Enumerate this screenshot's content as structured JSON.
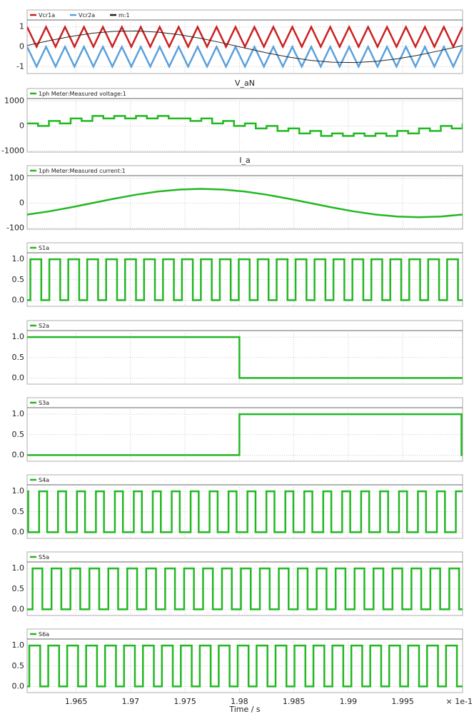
{
  "chart_data": [
    {
      "type": "line",
      "xlim": [
        1.9605,
        2.0005
      ],
      "ylim": [
        -1.35,
        1.35
      ],
      "xticks": [
        1.965,
        1.97,
        1.975,
        1.98,
        1.985,
        1.99,
        1.995
      ],
      "yticks": [
        -1,
        0,
        1
      ],
      "grid": true,
      "series": [
        {
          "name": "Vcr1a",
          "color": "#cc1f1f",
          "x": [
            1.9605,
            1.96137,
            1.96224,
            1.96311,
            1.96398,
            1.96485,
            1.96572,
            1.96659,
            1.96746,
            1.96833,
            1.9692,
            1.97007,
            1.97094,
            1.97181,
            1.97268,
            1.97355,
            1.97442,
            1.97529,
            1.97616,
            1.97703,
            1.9779,
            1.97877,
            1.97964,
            1.98051,
            1.98138,
            1.98225,
            1.98312,
            1.98399,
            1.98486,
            1.98573,
            1.9866,
            1.98747,
            1.98834,
            1.98921,
            1.99008,
            1.99095,
            1.99182,
            1.99269,
            1.99356,
            1.99443,
            1.9953,
            1.99617,
            1.99704,
            1.99791,
            1.99878,
            1.99965,
            2.0005
          ],
          "values": [
            1,
            0,
            1,
            0,
            1,
            0,
            1,
            0,
            1,
            0,
            1,
            0,
            1,
            0,
            1,
            0,
            1,
            0,
            1,
            0,
            1,
            0,
            1,
            0,
            1,
            0,
            1,
            0,
            1,
            0,
            1,
            0,
            1,
            0,
            1,
            0,
            1,
            0,
            1,
            0,
            1,
            0,
            1,
            0,
            1,
            0,
            1
          ]
        },
        {
          "name": "Vcr2a",
          "color": "#5aa0dc",
          "x": [
            1.9605,
            1.96137,
            1.96224,
            1.96311,
            1.96398,
            1.96485,
            1.96572,
            1.96659,
            1.96746,
            1.96833,
            1.9692,
            1.97007,
            1.97094,
            1.97181,
            1.97268,
            1.97355,
            1.97442,
            1.97529,
            1.97616,
            1.97703,
            1.9779,
            1.97877,
            1.97964,
            1.98051,
            1.98138,
            1.98225,
            1.98312,
            1.98399,
            1.98486,
            1.98573,
            1.9866,
            1.98747,
            1.98834,
            1.98921,
            1.99008,
            1.99095,
            1.99182,
            1.99269,
            1.99356,
            1.99443,
            1.9953,
            1.99617,
            1.99704,
            1.99791,
            1.99878,
            1.99965,
            2.0005
          ],
          "values": [
            0,
            -1,
            0,
            -1,
            0,
            -1,
            0,
            -1,
            0,
            -1,
            0,
            -1,
            0,
            -1,
            0,
            -1,
            0,
            -1,
            0,
            -1,
            0,
            -1,
            0,
            -1,
            0,
            -1,
            0,
            -1,
            0,
            -1,
            0,
            -1,
            0,
            -1,
            0,
            -1,
            0,
            -1,
            0,
            -1,
            0,
            -1,
            0,
            -1,
            0,
            -1,
            0
          ]
        },
        {
          "name": "m:1",
          "color": "#222222",
          "x": [
            1.9605,
            1.9625,
            1.9645,
            1.9665,
            1.9685,
            1.9705,
            1.9725,
            1.9745,
            1.9765,
            1.9785,
            1.9805,
            1.9825,
            1.9845,
            1.9865,
            1.9885,
            1.9905,
            1.9925,
            1.9945,
            1.9965,
            1.9985,
            2.0005
          ],
          "values": [
            0.063,
            0.306,
            0.519,
            0.682,
            0.778,
            0.798,
            0.739,
            0.608,
            0.417,
            0.187,
            -0.063,
            -0.306,
            -0.519,
            -0.682,
            -0.778,
            -0.798,
            -0.739,
            -0.608,
            -0.417,
            -0.187,
            0.063
          ]
        }
      ]
    },
    {
      "type": "step",
      "title": "V_aN",
      "xlim": [
        1.9605,
        2.0005
      ],
      "ylim": [
        -1050,
        1100
      ],
      "xticks": [
        1.965,
        1.97,
        1.975,
        1.98,
        1.985,
        1.99,
        1.995
      ],
      "yticks": [
        -1000,
        0,
        1000
      ],
      "grid": true,
      "series": [
        {
          "name": "1ph Meter:Measured voltage:1",
          "color": "#22b822",
          "x": [
            1.9605,
            1.9615,
            1.9625,
            1.9635,
            1.9645,
            1.9655,
            1.9665,
            1.9675,
            1.9685,
            1.9695,
            1.9705,
            1.9715,
            1.9725,
            1.9735,
            1.9745,
            1.9755,
            1.9765,
            1.9775,
            1.9785,
            1.9795,
            1.9805,
            1.9815,
            1.9825,
            1.9835,
            1.9845,
            1.9855,
            1.9865,
            1.9875,
            1.9885,
            1.9895,
            1.9905,
            1.9915,
            1.9925,
            1.9935,
            1.9945,
            1.9955,
            1.9965,
            1.9975,
            1.9985,
            1.9995,
            2.0005
          ],
          "values": [
            100,
            0,
            200,
            100,
            300,
            200,
            400,
            300,
            400,
            300,
            400,
            300,
            400,
            300,
            300,
            200,
            300,
            100,
            200,
            0,
            100,
            -100,
            0,
            -200,
            -100,
            -300,
            -200,
            -400,
            -300,
            -400,
            -300,
            -400,
            -300,
            -400,
            -200,
            -300,
            -100,
            -200,
            0,
            -100,
            100
          ]
        }
      ]
    },
    {
      "type": "line",
      "title": "I_a",
      "xlim": [
        1.9605,
        2.0005
      ],
      "ylim": [
        -105,
        110
      ],
      "xticks": [
        1.965,
        1.97,
        1.975,
        1.98,
        1.985,
        1.99,
        1.995
      ],
      "yticks": [
        -100,
        0,
        100
      ],
      "grid": true,
      "series": [
        {
          "name": "1ph Meter:Measured current:1",
          "color": "#22b822",
          "x": [
            1.9605,
            1.9625,
            1.9645,
            1.9665,
            1.9685,
            1.9705,
            1.9725,
            1.9745,
            1.9765,
            1.9785,
            1.9805,
            1.9825,
            1.9845,
            1.9865,
            1.9885,
            1.9905,
            1.9925,
            1.9945,
            1.9965,
            1.9985,
            2.0005
          ],
          "values": [
            -46.1,
            -33.5,
            -17.6,
            0,
            17.6,
            33.5,
            46.1,
            54.2,
            57,
            54.2,
            46.1,
            33.5,
            17.6,
            0,
            -17.6,
            -33.5,
            -46.1,
            -54.2,
            -57,
            -54.2,
            -46.1
          ]
        }
      ]
    },
    {
      "type": "step",
      "xlim": [
        1.9605,
        2.0005
      ],
      "ylim": [
        -0.15,
        1.16
      ],
      "xticks": [
        1.965,
        1.97,
        1.975,
        1.98,
        1.985,
        1.99,
        1.995
      ],
      "yticks": [
        {
          "value": 0,
          "label": "0.0"
        },
        {
          "value": 0.5,
          "label": "0.5"
        },
        {
          "value": 1,
          "label": "1.0"
        }
      ],
      "grid": true,
      "series": [
        {
          "name": "S1a",
          "color": "#22b822",
          "x": [
            1.9605,
            1.9608,
            1.9618,
            1.96254,
            1.96354,
            1.96428,
            1.96528,
            1.96602,
            1.96702,
            1.96776,
            1.96876,
            1.9695,
            1.9705,
            1.97124,
            1.97224,
            1.97298,
            1.97398,
            1.97472,
            1.97572,
            1.97646,
            1.97746,
            1.9782,
            1.9792,
            1.97994,
            1.98094,
            1.98168,
            1.98268,
            1.98342,
            1.98442,
            1.98516,
            1.98616,
            1.9869,
            1.9879,
            1.98864,
            1.98964,
            1.99038,
            1.99138,
            1.99212,
            1.99312,
            1.99386,
            1.99486,
            1.9956,
            1.9966,
            1.99734,
            1.99834,
            1.99908,
            2.00008
          ],
          "values": [
            0,
            1,
            0,
            1,
            0,
            1,
            0,
            1,
            0,
            1,
            0,
            1,
            0,
            1,
            0,
            1,
            0,
            1,
            0,
            1,
            0,
            1,
            0,
            1,
            0,
            1,
            0,
            1,
            0,
            1,
            0,
            1,
            0,
            1,
            0,
            1,
            0,
            1,
            0,
            1,
            0,
            1,
            0,
            1,
            0,
            1,
            0
          ]
        }
      ]
    },
    {
      "type": "step",
      "xlim": [
        1.9605,
        2.0005
      ],
      "ylim": [
        -0.15,
        1.16
      ],
      "xticks": [
        1.965,
        1.97,
        1.975,
        1.98,
        1.985,
        1.99,
        1.995
      ],
      "yticks": [
        {
          "value": 0,
          "label": "0.0"
        },
        {
          "value": 0.5,
          "label": "0.5"
        },
        {
          "value": 1,
          "label": "1.0"
        }
      ],
      "grid": true,
      "series": [
        {
          "name": "S2a",
          "color": "#22b822",
          "x": [
            1.9605,
            1.98
          ],
          "values": [
            1,
            0
          ]
        }
      ]
    },
    {
      "type": "step",
      "xlim": [
        1.9605,
        2.0005
      ],
      "ylim": [
        -0.15,
        1.16
      ],
      "xticks": [
        1.965,
        1.97,
        1.975,
        1.98,
        1.985,
        1.99,
        1.995
      ],
      "yticks": [
        {
          "value": 0,
          "label": "0.0"
        },
        {
          "value": 0.5,
          "label": "0.5"
        },
        {
          "value": 1,
          "label": "1.0"
        }
      ],
      "grid": true,
      "series": [
        {
          "name": "S3a",
          "color": "#22b822",
          "x": [
            1.9605,
            1.98,
            2.0004
          ],
          "values": [
            0,
            1,
            0
          ]
        }
      ]
    },
    {
      "type": "step",
      "xlim": [
        1.9605,
        2.0005
      ],
      "ylim": [
        -0.15,
        1.16
      ],
      "xticks": [
        1.965,
        1.97,
        1.975,
        1.98,
        1.985,
        1.99,
        1.995
      ],
      "yticks": [
        {
          "value": 0,
          "label": "0.0"
        },
        {
          "value": 0.5,
          "label": "0.5"
        },
        {
          "value": 1,
          "label": "1.0"
        }
      ],
      "grid": true,
      "series": [
        {
          "name": "S4a",
          "color": "#22b822",
          "x": [
            1.9605,
            1.9606,
            1.9616,
            1.96234,
            1.96334,
            1.96408,
            1.96508,
            1.96582,
            1.96682,
            1.96756,
            1.96856,
            1.9693,
            1.9703,
            1.97104,
            1.97204,
            1.97278,
            1.97378,
            1.97452,
            1.97552,
            1.97626,
            1.97726,
            1.978,
            1.979,
            1.97974,
            1.98074,
            1.98148,
            1.98248,
            1.98322,
            1.98422,
            1.98496,
            1.98596,
            1.9867,
            1.9877,
            1.98844,
            1.98944,
            1.99018,
            1.99118,
            1.99192,
            1.99292,
            1.99366,
            1.99466,
            1.9954,
            1.9964,
            1.99714,
            1.99814,
            1.99888,
            1.99988
          ],
          "values": [
            1,
            0,
            1,
            0,
            1,
            0,
            1,
            0,
            1,
            0,
            1,
            0,
            1,
            0,
            1,
            0,
            1,
            0,
            1,
            0,
            1,
            0,
            1,
            0,
            1,
            0,
            1,
            0,
            1,
            0,
            1,
            0,
            1,
            0,
            1,
            0,
            1,
            0,
            1,
            0,
            1,
            0,
            1,
            0,
            1,
            0,
            1
          ]
        }
      ]
    },
    {
      "type": "step",
      "xlim": [
        1.9605,
        2.0005
      ],
      "ylim": [
        -0.15,
        1.16
      ],
      "xticks": [
        1.965,
        1.97,
        1.975,
        1.98,
        1.985,
        1.99,
        1.995
      ],
      "yticks": [
        {
          "value": 0,
          "label": "0.0"
        },
        {
          "value": 0.5,
          "label": "0.5"
        },
        {
          "value": 1,
          "label": "1.0"
        }
      ],
      "grid": true,
      "series": [
        {
          "name": "S5a",
          "color": "#22b822",
          "x": [
            1.9605,
            1.961,
            1.9619,
            1.96274,
            1.96364,
            1.96448,
            1.96538,
            1.96622,
            1.96712,
            1.96796,
            1.96886,
            1.9697,
            1.9706,
            1.97144,
            1.97234,
            1.97318,
            1.97408,
            1.97492,
            1.97582,
            1.97666,
            1.97756,
            1.9784,
            1.9793,
            1.98014,
            1.98104,
            1.98188,
            1.98278,
            1.98362,
            1.98452,
            1.98536,
            1.98626,
            1.9871,
            1.988,
            1.98884,
            1.98974,
            1.99058,
            1.99148,
            1.99232,
            1.99322,
            1.99406,
            1.99496,
            1.9958,
            1.9967,
            1.99754,
            1.99844,
            1.99928,
            2.00018
          ],
          "values": [
            0,
            1,
            0,
            1,
            0,
            1,
            0,
            1,
            0,
            1,
            0,
            1,
            0,
            1,
            0,
            1,
            0,
            1,
            0,
            1,
            0,
            1,
            0,
            1,
            0,
            1,
            0,
            1,
            0,
            1,
            0,
            1,
            0,
            1,
            0,
            1,
            0,
            1,
            0,
            1,
            0,
            1,
            0,
            1,
            0,
            1,
            0
          ]
        }
      ]
    },
    {
      "type": "step",
      "xlim": [
        1.9605,
        2.0005
      ],
      "ylim": [
        -0.15,
        1.16
      ],
      "xticks": [
        1.965,
        1.97,
        1.975,
        1.98,
        1.985,
        1.99,
        1.995
      ],
      "yticks": [
        {
          "value": 0,
          "label": "0.0"
        },
        {
          "value": 0.5,
          "label": "0.5"
        },
        {
          "value": 1,
          "label": "1.0"
        }
      ],
      "grid": true,
      "xtick_labels": true,
      "x_multiplier": "× 1e-1",
      "xlabel": "Time / s",
      "series": [
        {
          "name": "S6a",
          "color": "#22b822",
          "x": [
            1.9605,
            1.9607,
            1.9617,
            1.96244,
            1.96344,
            1.96418,
            1.96518,
            1.96592,
            1.96692,
            1.96766,
            1.96866,
            1.9694,
            1.9704,
            1.97114,
            1.97214,
            1.97288,
            1.97388,
            1.97462,
            1.97562,
            1.97636,
            1.97736,
            1.9781,
            1.9791,
            1.97984,
            1.98084,
            1.98158,
            1.98258,
            1.98332,
            1.98432,
            1.98506,
            1.98606,
            1.9868,
            1.9878,
            1.98854,
            1.98954,
            1.99028,
            1.99128,
            1.99202,
            1.99302,
            1.99376,
            1.99476,
            1.9955,
            1.9965,
            1.99724,
            1.99824,
            1.99898,
            1.99998
          ],
          "values": [
            0,
            1,
            0,
            1,
            0,
            1,
            0,
            1,
            0,
            1,
            0,
            1,
            0,
            1,
            0,
            1,
            0,
            1,
            0,
            1,
            0,
            1,
            0,
            1,
            0,
            1,
            0,
            1,
            0,
            1,
            0,
            1,
            0,
            1,
            0,
            1,
            0,
            1,
            0,
            1,
            0,
            1,
            0,
            1,
            0,
            1,
            0
          ]
        }
      ]
    }
  ]
}
